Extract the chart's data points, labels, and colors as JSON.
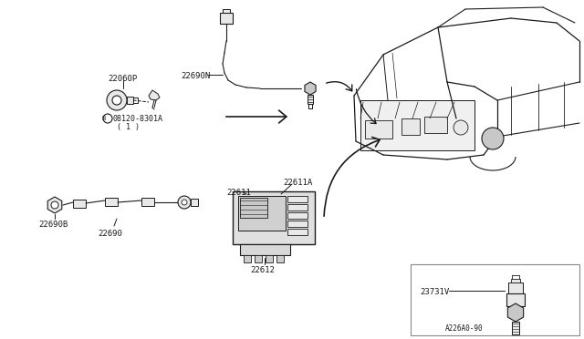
{
  "background_color": "#ffffff",
  "line_color": "#1a1a1a",
  "text_color": "#1a1a1a",
  "gray_fill": "#c8c8c8",
  "light_fill": "#e8e8e8",
  "labels": {
    "part1": "22060P",
    "part1b": "08120-8301A",
    "part1c": "( 1 )",
    "part2": "22690N",
    "part3": "22611A",
    "part4": "22611",
    "part5": "22612",
    "part6": "22690B",
    "part7": "22690",
    "part8": "23731V",
    "part9": "A226A0-90"
  },
  "figsize": [
    6.4,
    3.72
  ],
  "dpi": 100
}
